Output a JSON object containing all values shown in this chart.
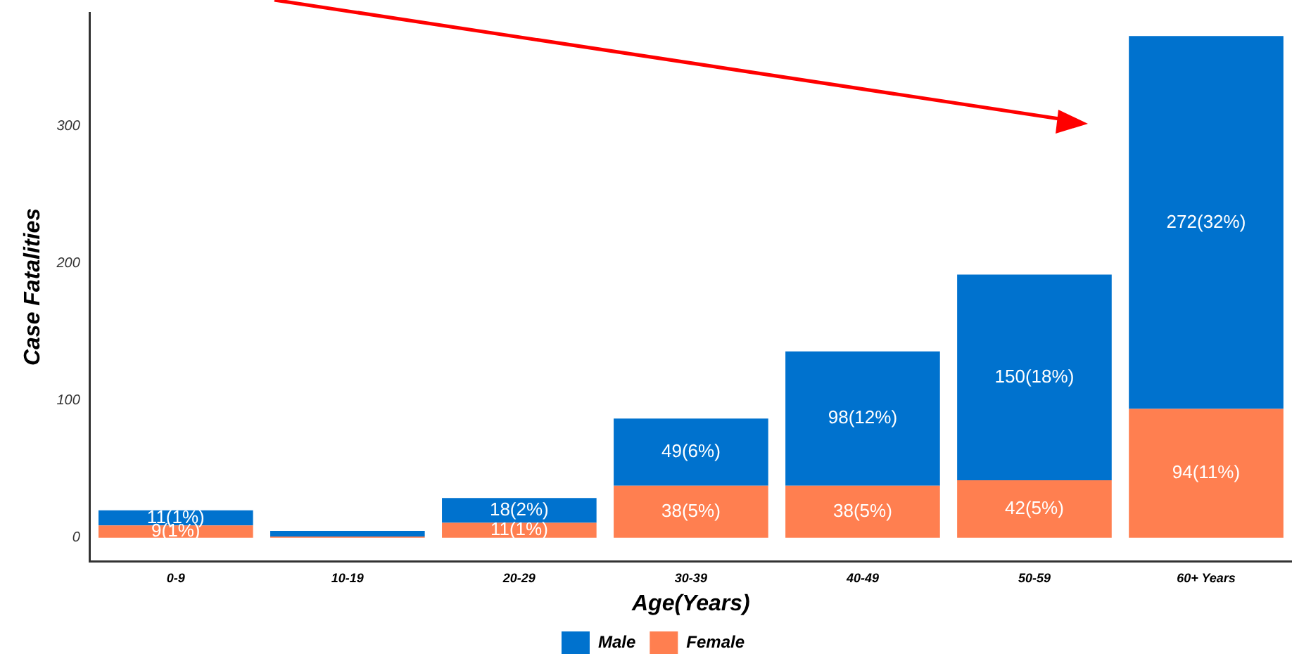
{
  "chart_data": {
    "type": "bar",
    "stacked": true,
    "xlabel": "Age(Years)",
    "ylabel": "Case Fatalities",
    "categories": [
      "0-9",
      "10-19",
      "20-29",
      "30-39",
      "40-49",
      "50-59",
      "60+ Years"
    ],
    "series": [
      {
        "name": "Female",
        "color": "#ff7f50",
        "values": [
          9,
          1,
          11,
          38,
          38,
          42,
          94
        ],
        "value_labels": [
          "9(1%)",
          null,
          "11(1%)",
          "38(5%)",
          "38(5%)",
          "42(5%)",
          "94(11%)"
        ]
      },
      {
        "name": "Male",
        "color": "#0072ce",
        "values": [
          11,
          4,
          18,
          49,
          98,
          150,
          272
        ],
        "value_labels": [
          "11(1%)",
          null,
          "18(2%)",
          "49(6%)",
          "98(12%)",
          "150(18%)",
          "272(32%)"
        ]
      }
    ],
    "ylim": [
      -17,
      383
    ],
    "yticks": [
      0,
      100,
      200,
      300
    ],
    "grid": false,
    "legend": "bottom"
  }
}
